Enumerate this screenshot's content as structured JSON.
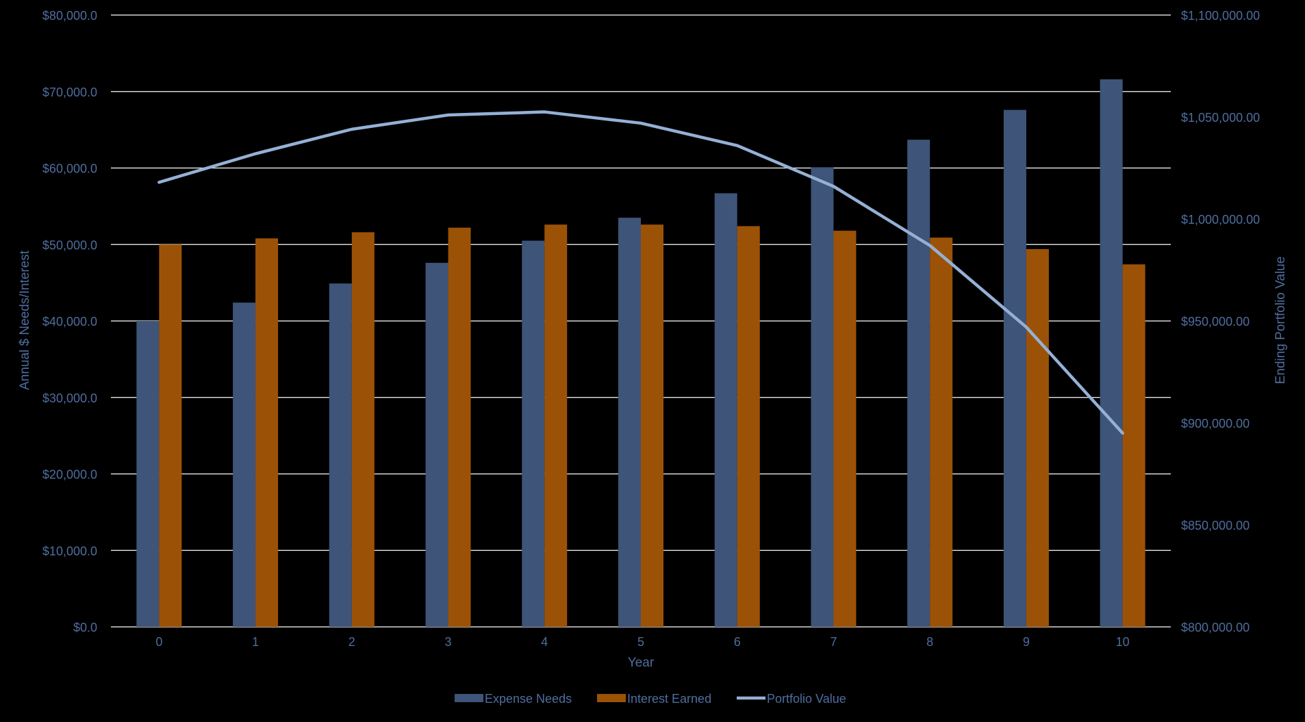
{
  "chart_data": {
    "type": "bar",
    "combo": "bar+line (secondary axis)",
    "categories": [
      "0",
      "1",
      "2",
      "3",
      "4",
      "5",
      "6",
      "7",
      "8",
      "9",
      "10"
    ],
    "series": [
      {
        "name": "Expense Needs",
        "type": "bar",
        "axis": "left",
        "color": "#3e5479",
        "values": [
          40000,
          42400,
          44900,
          47600,
          50500,
          53500,
          56700,
          60100,
          63700,
          67600,
          71600
        ]
      },
      {
        "name": "Interest Earned",
        "type": "bar",
        "axis": "left",
        "color": "#9c5206",
        "values": [
          50000,
          50800,
          51600,
          52200,
          52600,
          52600,
          52400,
          51800,
          50900,
          49400,
          47400
        ]
      },
      {
        "name": "Portfolio Value",
        "type": "line",
        "axis": "right",
        "color": "#95b0d5",
        "values": [
          1018000,
          1032000,
          1044000,
          1051000,
          1052500,
          1047000,
          1036000,
          1016000,
          987000,
          947000,
          895000
        ]
      }
    ],
    "xlabel": "Year",
    "ylabel": "Annual $ Needs/Interest",
    "y2label": "Ending Portfolio Value",
    "ylim": [
      0,
      80000
    ],
    "y2lim": [
      800000,
      1100000
    ],
    "yticks": [
      "$0.0",
      "$10,000.0",
      "$20,000.0",
      "$30,000.0",
      "$40,000.0",
      "$50,000.0",
      "$60,000.0",
      "$70,000.0",
      "$80,000.0"
    ],
    "y2ticks": [
      "$800,000.00",
      "$850,000.00",
      "$900,000.00",
      "$950,000.00",
      "$1,000,000.00",
      "$1,050,000.00",
      "$1,100,000.00"
    ],
    "grid": true,
    "legend_position": "bottom",
    "colors": {
      "background": "#000000",
      "gridline": "#ffffff",
      "axis_text": "#4f6d9e"
    }
  }
}
